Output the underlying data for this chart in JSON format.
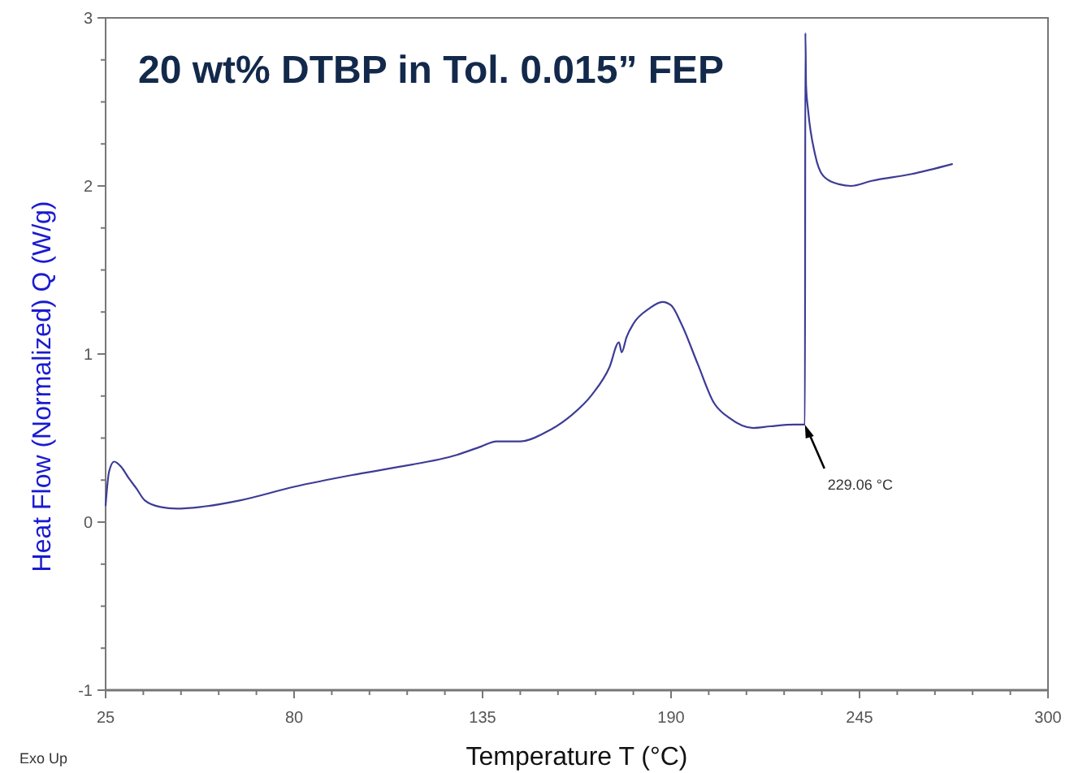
{
  "chart_data": {
    "type": "line",
    "title": "20 wt% DTBP in Tol. 0.015” FEP",
    "xlabel": "Temperature T (°C)",
    "ylabel": "Heat Flow (Normalized)  Q  (W/g)",
    "xlim": [
      25,
      300
    ],
    "ylim": [
      -1,
      3
    ],
    "xticks": [
      25,
      {
        "value": 36,
        "label": null
      },
      {
        "value": 47,
        "label": null
      },
      {
        "value": 58,
        "label": null
      },
      {
        "value": 69,
        "label": null
      },
      80,
      {
        "value": 91,
        "label": null
      },
      {
        "value": 102,
        "label": null
      },
      {
        "value": 113,
        "label": null
      },
      {
        "value": 124,
        "label": null
      },
      135,
      {
        "value": 146,
        "label": null
      },
      {
        "value": 157,
        "label": null
      },
      {
        "value": 168,
        "label": null
      },
      {
        "value": 179,
        "label": null
      },
      190,
      {
        "value": 201,
        "label": null
      },
      {
        "value": 212,
        "label": null
      },
      {
        "value": 223,
        "label": null
      },
      {
        "value": 234,
        "label": null
      },
      245,
      {
        "value": 256,
        "label": null
      },
      {
        "value": 267,
        "label": null
      },
      {
        "value": 278,
        "label": null
      },
      {
        "value": 289,
        "label": null
      },
      300
    ],
    "yticks": [
      -1,
      {
        "value": -0.75,
        "label": null
      },
      {
        "value": -0.5,
        "label": null
      },
      {
        "value": -0.25,
        "label": null
      },
      0,
      {
        "value": 0.25,
        "label": null
      },
      {
        "value": 0.5,
        "label": null
      },
      {
        "value": 0.75,
        "label": null
      },
      1,
      {
        "value": 1.25,
        "label": null
      },
      {
        "value": 1.5,
        "label": null
      },
      {
        "value": 1.75,
        "label": null
      },
      2,
      {
        "value": 2.25,
        "label": null
      },
      {
        "value": 2.5,
        "label": null
      },
      {
        "value": 2.75,
        "label": null
      },
      3
    ],
    "grid": false,
    "marker": "none",
    "line_style": "solid",
    "series": [
      {
        "color": "#3c3c96",
        "x": [
          25,
          26,
          27.5,
          29.5,
          31.8,
          34,
          36.4,
          41,
          45.7,
          52.7,
          64.4,
          80,
          97,
          111,
          127.5,
          134.6,
          139,
          146,
          153,
          160,
          167,
          172,
          174.8,
          175.6,
          177,
          179,
          183.6,
          187.5,
          190,
          193,
          197.8,
          202.5,
          207,
          214,
          219,
          226,
          229.06,
          229.2,
          229.4,
          230,
          232,
          234.4,
          239,
          242.5,
          248.5,
          260,
          272
        ],
        "values": [
          0.1,
          0.3,
          0.36,
          0.33,
          0.26,
          0.2,
          0.13,
          0.09,
          0.08,
          0.09,
          0.13,
          0.21,
          0.28,
          0.33,
          0.4,
          0.45,
          0.48,
          0.48,
          0.53,
          0.62,
          0.76,
          0.92,
          1.07,
          1.01,
          1.1,
          1.18,
          1.27,
          1.31,
          1.29,
          1.18,
          0.94,
          0.71,
          0.62,
          0.56,
          0.57,
          0.58,
          0.58,
          2.91,
          2.6,
          2.45,
          2.19,
          2.06,
          2.01,
          2.0,
          2.03,
          2.07,
          2.13
        ]
      }
    ],
    "annotations": [
      {
        "text": "229.06 °C",
        "x": 229.06,
        "y": 0.58
      },
      "Exo Up"
    ]
  }
}
